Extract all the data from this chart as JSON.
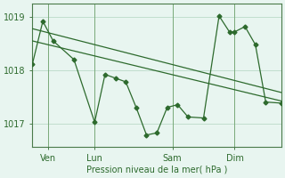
{
  "bg_color": "#e8f5f0",
  "line_color": "#2d6a2d",
  "grid_color": "#b0d4c0",
  "xlabel": "Pression niveau de la mer( hPa )",
  "xlim": [
    0,
    96
  ],
  "ylim": [
    1016.55,
    1019.25
  ],
  "yticks": [
    1017,
    1018,
    1019
  ],
  "xtick_labels": [
    "Ven",
    "Lun",
    "Sam",
    "Dim"
  ],
  "xtick_positions": [
    6,
    24,
    54,
    78
  ],
  "vline_positions": [
    6,
    24,
    54,
    78
  ],
  "trend1_x": [
    0,
    96
  ],
  "trend1_y": [
    1018.78,
    1017.58
  ],
  "trend2_x": [
    0,
    96
  ],
  "trend2_y": [
    1018.55,
    1017.42
  ],
  "main_x": [
    0,
    4,
    8,
    16,
    24,
    28,
    32,
    36,
    40,
    44,
    48,
    52,
    56,
    60,
    66,
    72,
    76,
    78,
    82,
    86,
    90,
    96
  ],
  "main_y": [
    1018.12,
    1018.92,
    1018.55,
    1018.2,
    1017.02,
    1017.92,
    1017.85,
    1017.78,
    1017.3,
    1016.78,
    1016.82,
    1017.3,
    1017.35,
    1017.12,
    1017.1,
    1019.02,
    1018.72,
    1018.72,
    1018.82,
    1018.48,
    1017.4,
    1017.38
  ]
}
